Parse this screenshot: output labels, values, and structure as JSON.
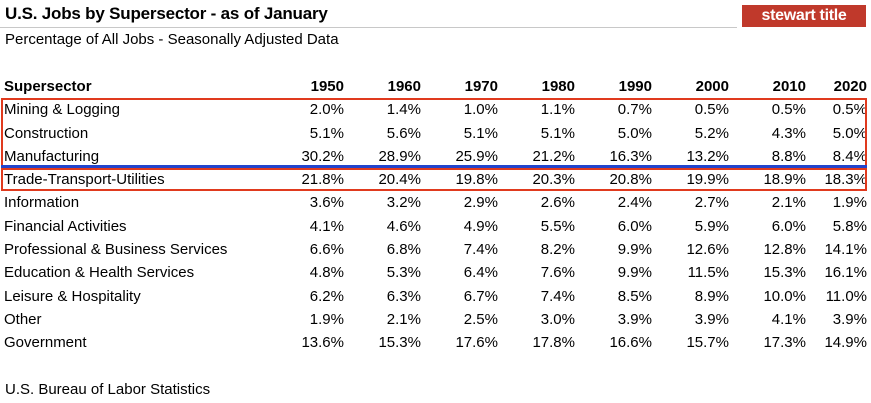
{
  "header": {
    "title": "U.S. Jobs by Supersector - as of January",
    "subtitle": "Percentage of All Jobs - Seasonally Adjusted Data",
    "logo_text": "stewart title",
    "source": "U.S. Bureau of Labor Statistics"
  },
  "colors": {
    "logo_bg": "#c0392b",
    "highlight_box": "#e03a1e",
    "highlight_line": "#2244cc"
  },
  "chart_data": {
    "type": "table",
    "title": "U.S. Jobs by Supersector - as of January",
    "subtitle": "Percentage of All Jobs - Seasonally Adjusted Data",
    "header_label": "Supersector",
    "columns": [
      "1950",
      "1960",
      "1970",
      "1980",
      "1990",
      "2000",
      "2010",
      "2020"
    ],
    "rows": [
      {
        "label": "Mining & Logging",
        "values": [
          "2.0%",
          "1.4%",
          "1.0%",
          "1.1%",
          "0.7%",
          "0.5%",
          "0.5%",
          "0.5%"
        ]
      },
      {
        "label": "Construction",
        "values": [
          "5.1%",
          "5.6%",
          "5.1%",
          "5.1%",
          "5.0%",
          "5.2%",
          "4.3%",
          "5.0%"
        ]
      },
      {
        "label": "Manufacturing",
        "values": [
          "30.2%",
          "28.9%",
          "25.9%",
          "21.2%",
          "16.3%",
          "13.2%",
          "8.8%",
          "8.4%"
        ]
      },
      {
        "label": "Trade-Transport-Utilities",
        "values": [
          "21.8%",
          "20.4%",
          "19.8%",
          "20.3%",
          "20.8%",
          "19.9%",
          "18.9%",
          "18.3%"
        ]
      },
      {
        "label": "Information",
        "values": [
          "3.6%",
          "3.2%",
          "2.9%",
          "2.6%",
          "2.4%",
          "2.7%",
          "2.1%",
          "1.9%"
        ]
      },
      {
        "label": "Financial Activities",
        "values": [
          "4.1%",
          "4.6%",
          "4.9%",
          "5.5%",
          "6.0%",
          "5.9%",
          "6.0%",
          "5.8%"
        ]
      },
      {
        "label": "Professional & Business Services",
        "values": [
          "6.6%",
          "6.8%",
          "7.4%",
          "8.2%",
          "9.9%",
          "12.6%",
          "12.8%",
          "14.1%"
        ]
      },
      {
        "label": "Education & Health Services",
        "values": [
          "4.8%",
          "5.3%",
          "6.4%",
          "7.6%",
          "9.9%",
          "11.5%",
          "15.3%",
          "16.1%"
        ]
      },
      {
        "label": "Leisure & Hospitality",
        "values": [
          "6.2%",
          "6.3%",
          "6.7%",
          "7.4%",
          "8.5%",
          "8.9%",
          "10.0%",
          "11.0%"
        ]
      },
      {
        "label": "Other",
        "values": [
          "1.9%",
          "2.1%",
          "2.5%",
          "3.0%",
          "3.9%",
          "3.9%",
          "4.1%",
          "3.9%"
        ]
      },
      {
        "label": "Government",
        "values": [
          "13.6%",
          "15.3%",
          "17.6%",
          "17.8%",
          "16.6%",
          "15.7%",
          "17.3%",
          "14.9%"
        ]
      }
    ]
  }
}
